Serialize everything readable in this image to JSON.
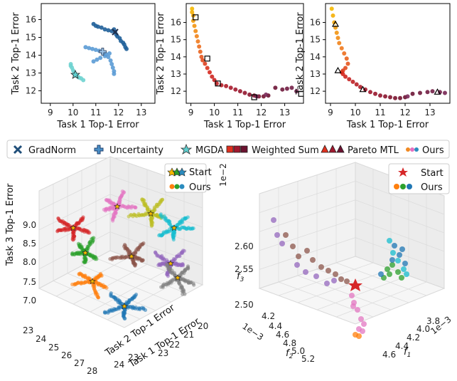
{
  "legend": {
    "entries": [
      {
        "label": "GradNorm",
        "marker": "x-marker",
        "color": "#1f4e79"
      },
      {
        "label": "Uncertainty",
        "marker": "plus-marker",
        "color": "#4a90c8"
      },
      {
        "label": "MGDA",
        "marker": "star-marker",
        "color": "#5ecfcf"
      },
      {
        "label": "Weighted Sum",
        "marker": "square-marker",
        "colors": [
          "#e0301e",
          "#a0182e",
          "#6b1230"
        ]
      },
      {
        "label": "Pareto MTL",
        "marker": "triangle-marker",
        "colors": [
          "#e0301e",
          "#a0182e",
          "#6b1230"
        ]
      },
      {
        "label": "Ours",
        "marker": "dot-marker",
        "colors": [
          "#f08a24",
          "#e56fc0",
          "#2b8cbe"
        ]
      }
    ]
  },
  "chart_data": [
    {
      "type": "scatter",
      "xlabel": "Task 1 Top-1 Error",
      "ylabel": "Task 2 Top-1 Error",
      "xlim": [
        8.6,
        13.6
      ],
      "ylim": [
        11.3,
        16.9
      ],
      "xticks": [
        9,
        10,
        11,
        12,
        13
      ],
      "yticks": [
        12,
        13,
        14,
        15,
        16
      ],
      "series": [
        {
          "name": "GradNorm",
          "color": "#1f5f99",
          "x": [
            10.9,
            11.0,
            11.1,
            11.25,
            11.4,
            11.55,
            11.7,
            11.85,
            11.9,
            11.95,
            12.05,
            12.1,
            12.2,
            12.25,
            12.3,
            12.35,
            11.8
          ],
          "y": [
            15.75,
            15.65,
            15.6,
            15.55,
            15.45,
            15.4,
            15.35,
            15.3,
            15.15,
            15.05,
            14.95,
            14.8,
            14.7,
            14.6,
            14.45,
            14.35,
            15.45
          ]
        },
        {
          "name": "Uncertainty",
          "color": "#5b9bd5",
          "x": [
            10.55,
            10.7,
            10.85,
            11.0,
            11.15,
            11.3,
            11.45,
            11.55,
            11.65,
            11.7,
            11.75,
            11.8,
            11.8,
            11.6,
            11.4,
            11.2,
            11.05,
            10.9
          ],
          "y": [
            14.45,
            14.4,
            14.35,
            14.3,
            14.25,
            14.15,
            14.05,
            13.9,
            13.7,
            13.5,
            13.3,
            13.1,
            12.95,
            14.1,
            13.95,
            13.85,
            13.75,
            13.65
          ]
        },
        {
          "name": "MGDA",
          "color": "#6fd3d0",
          "x": [
            9.9,
            9.95,
            10.0,
            10.05,
            10.1,
            10.15,
            10.25,
            10.35,
            10.45,
            9.9,
            10.2
          ],
          "y": [
            13.5,
            13.3,
            13.15,
            13.05,
            12.95,
            12.85,
            12.75,
            12.7,
            12.6,
            13.4,
            12.8
          ]
        },
        {
          "name": "Ours",
          "color": "#1f3f6e",
          "x": [
            11.85,
            11.3,
            10.1
          ],
          "y": [
            15.3,
            14.2,
            12.9
          ],
          "note": "method markers"
        }
      ]
    },
    {
      "type": "scatter",
      "xlabel": "Task 1 Top-1 Error",
      "ylabel": "Task 2 Top-1 Error",
      "xlim": [
        8.8,
        13.8
      ],
      "ylim": [
        11.3,
        17.1
      ],
      "xticks": [
        9,
        10,
        11,
        12,
        13
      ],
      "yticks": [
        12,
        13,
        14,
        15,
        16
      ],
      "series": [
        {
          "name": "Ours",
          "color": "#f5b800",
          "x": [
            9.05,
            9.05,
            9.1,
            9.1,
            9.15,
            9.2,
            9.25,
            9.3,
            9.35,
            9.4,
            9.45,
            9.5,
            9.6,
            9.7,
            9.8,
            9.9,
            10.0,
            10.1,
            10.3,
            10.5,
            10.7,
            10.9,
            11.1,
            11.3,
            11.5,
            11.7,
            11.9,
            12.1,
            12.3,
            12.6,
            12.9,
            13.1,
            13.3,
            13.5,
            11.8,
            12.2
          ],
          "y": [
            16.8,
            16.6,
            16.4,
            16.1,
            15.8,
            15.5,
            15.2,
            14.9,
            14.6,
            14.3,
            14.0,
            13.8,
            13.6,
            13.35,
            13.1,
            12.85,
            12.65,
            12.45,
            12.35,
            12.3,
            12.2,
            12.1,
            12.0,
            11.9,
            11.8,
            11.75,
            11.7,
            11.7,
            11.75,
            12.2,
            12.1,
            12.15,
            12.2,
            12.0,
            11.7,
            11.8
          ]
        },
        {
          "name": "Weighted Sum",
          "color": "#000000",
          "x": [
            9.2,
            9.7,
            10.15,
            11.7,
            13.7
          ],
          "y": [
            16.3,
            13.9,
            12.45,
            11.65,
            11.85
          ]
        }
      ]
    },
    {
      "type": "scatter",
      "xlabel": "Task 1 Top-1 Error",
      "ylabel": "Task 2 Top-1 Error",
      "xlim": [
        8.8,
        13.8
      ],
      "ylim": [
        11.3,
        17.1
      ],
      "xticks": [
        9,
        10,
        11,
        12,
        13
      ],
      "yticks": [
        12,
        13,
        14,
        15,
        16
      ],
      "series": [
        {
          "name": "Ours",
          "color": "#f5b800",
          "x": [
            9.05,
            9.1,
            9.15,
            9.2,
            9.25,
            9.3,
            9.35,
            9.45,
            9.55,
            9.65,
            9.7,
            9.6,
            9.5,
            9.45,
            9.5,
            9.6,
            9.75,
            9.9,
            10.05,
            10.2,
            10.4,
            10.6,
            10.8,
            11.0,
            11.2,
            11.4,
            11.6,
            11.8,
            12.0,
            12.3,
            12.6,
            12.9,
            13.1,
            13.4,
            13.6,
            12.1
          ],
          "y": [
            16.8,
            16.4,
            16.0,
            15.7,
            15.4,
            15.1,
            14.8,
            14.5,
            14.2,
            13.9,
            13.6,
            13.35,
            13.2,
            13.1,
            13.0,
            12.85,
            12.7,
            12.55,
            12.4,
            12.25,
            12.1,
            11.95,
            11.85,
            11.75,
            11.7,
            11.65,
            11.6,
            11.6,
            11.65,
            11.85,
            11.9,
            11.95,
            12.0,
            11.95,
            11.9,
            11.7
          ]
        },
        {
          "name": "Pareto MTL",
          "color": "#000000",
          "x": [
            9.2,
            9.3,
            10.3,
            13.3
          ],
          "y": [
            15.9,
            13.2,
            12.1,
            11.95
          ]
        }
      ]
    },
    {
      "type": "scatter",
      "xlabel": "Task 1 Top-1 Error",
      "ylabel": "Task 2 Top-1 Error",
      "zlabel": "Task 3 Top-1 Error",
      "xticks": [
        20,
        21,
        22,
        23
      ],
      "yticks": [
        23,
        24,
        25,
        26,
        27,
        28
      ],
      "zticks": [
        7.0,
        7.5,
        8.0,
        8.5,
        9.0
      ],
      "legend_entries": [
        "Start",
        "Ours"
      ],
      "series": [
        {
          "name": "Ours",
          "colors": [
            "#d62728",
            "#e377c2",
            "#bcbd22",
            "#17becf",
            "#2ca02c",
            "#8c564b",
            "#9467bd",
            "#ff7f0e",
            "#7f7f7f",
            "#1f77b4"
          ]
        }
      ]
    },
    {
      "type": "scatter",
      "xlabel": "f1",
      "ylabel": "f2",
      "zlabel": "f3",
      "xticks": [
        "3.8",
        "4.0",
        "4.2",
        "4.4",
        "4.6"
      ],
      "yticks": [
        "4.2",
        "4.4",
        "4.6",
        "4.8",
        "5.0",
        "5.2"
      ],
      "zticks": [
        "2.50",
        "2.55",
        "2.60"
      ],
      "x_exponent": "1e−3",
      "y_exponent": "1e−3",
      "z_exponent": "1e−2",
      "legend_entries": [
        "Start",
        "Ours"
      ],
      "series": [
        {
          "name": "Ours",
          "colors": [
            "#9467bd",
            "#8c564b",
            "#e377c2",
            "#ff7f0e",
            "#2ca02c",
            "#1f77b4",
            "#17becf"
          ]
        }
      ]
    }
  ]
}
